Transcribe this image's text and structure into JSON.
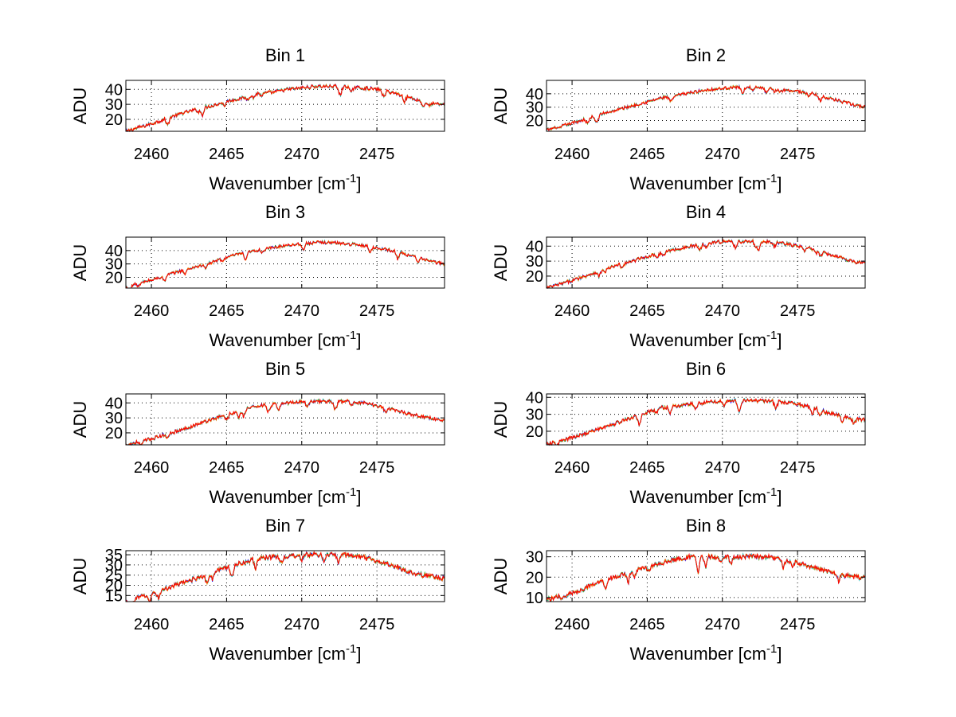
{
  "figure": {
    "background": "#ffffff",
    "series_colors": [
      "#0000ff",
      "#00a000",
      "#00bfbf",
      "#ff8000",
      "#ff0000"
    ]
  },
  "chart_data": [
    {
      "type": "line",
      "title": "Bin 1",
      "xlabel": "Wavenumber [cm",
      "xlabel_sup": "-1",
      "xlabel_end": "]",
      "ylabel": "ADU",
      "xlim": [
        2458.3,
        2479.5
      ],
      "ylim": [
        12,
        46
      ],
      "xticks": [
        2460,
        2465,
        2470,
        2475
      ],
      "yticks": [
        20,
        30,
        40
      ],
      "profile": {
        "x": [
          2458.3,
          2460,
          2462,
          2464,
          2465,
          2466,
          2467,
          2468,
          2469,
          2470,
          2471,
          2472,
          2473,
          2474,
          2475,
          2476,
          2477,
          2478,
          2479,
          2479.5
        ],
        "y": [
          12,
          17,
          24,
          29,
          32,
          34,
          37,
          38,
          40,
          41,
          42,
          42,
          42,
          41,
          40,
          38,
          35,
          32,
          30,
          30
        ]
      }
    },
    {
      "type": "line",
      "title": "Bin 2",
      "xlabel": "Wavenumber [cm",
      "xlabel_sup": "-1",
      "xlabel_end": "]",
      "ylabel": "ADU",
      "xlim": [
        2458.3,
        2479.5
      ],
      "ylim": [
        12,
        50
      ],
      "xticks": [
        2460,
        2465,
        2470,
        2475
      ],
      "yticks": [
        20,
        30,
        40
      ],
      "profile": {
        "x": [
          2458.3,
          2460,
          2462,
          2464,
          2465,
          2466,
          2467,
          2468,
          2469,
          2470,
          2471,
          2472,
          2473,
          2474,
          2475,
          2476,
          2477,
          2478,
          2479,
          2479.5
        ],
        "y": [
          13,
          18,
          25,
          31,
          34,
          37,
          39,
          41,
          43,
          44,
          45,
          45,
          44,
          43,
          42,
          40,
          37,
          34,
          31,
          30
        ]
      }
    },
    {
      "type": "line",
      "title": "Bin 3",
      "xlabel": "Wavenumber [cm",
      "xlabel_sup": "-1",
      "xlabel_end": "]",
      "ylabel": "ADU",
      "xlim": [
        2458.3,
        2479.5
      ],
      "ylim": [
        12,
        50
      ],
      "xticks": [
        2460,
        2465,
        2470,
        2475
      ],
      "yticks": [
        20,
        30,
        40
      ],
      "profile": {
        "x": [
          2458.3,
          2460,
          2462,
          2464,
          2465,
          2466,
          2467,
          2468,
          2469,
          2470,
          2471,
          2472,
          2473,
          2474,
          2475,
          2476,
          2477,
          2478,
          2479,
          2479.5
        ],
        "y": [
          13,
          18,
          25,
          31,
          35,
          38,
          40,
          42,
          44,
          45,
          46,
          46,
          45,
          44,
          42,
          40,
          37,
          34,
          31,
          30
        ]
      }
    },
    {
      "type": "line",
      "title": "Bin 4",
      "xlabel": "Wavenumber [cm",
      "xlabel_sup": "-1",
      "xlabel_end": "]",
      "ylabel": "ADU",
      "xlim": [
        2458.3,
        2479.5
      ],
      "ylim": [
        12,
        46
      ],
      "xticks": [
        2460,
        2465,
        2470,
        2475
      ],
      "yticks": [
        20,
        30,
        40
      ],
      "profile": {
        "x": [
          2458.3,
          2460,
          2462,
          2464,
          2465,
          2466,
          2467,
          2468,
          2469,
          2470,
          2471,
          2472,
          2473,
          2474,
          2475,
          2476,
          2477,
          2478,
          2479,
          2479.5
        ],
        "y": [
          12,
          17,
          24,
          30,
          33,
          36,
          38,
          40,
          42,
          43,
          43,
          43,
          43,
          42,
          40,
          38,
          35,
          32,
          29,
          29
        ]
      }
    },
    {
      "type": "line",
      "title": "Bin 5",
      "xlabel": "Wavenumber [cm",
      "xlabel_sup": "-1",
      "xlabel_end": "]",
      "ylabel": "ADU",
      "xlim": [
        2458.3,
        2479.5
      ],
      "ylim": [
        12,
        46
      ],
      "xticks": [
        2460,
        2465,
        2470,
        2475
      ],
      "yticks": [
        20,
        30,
        40
      ],
      "profile": {
        "x": [
          2458.3,
          2460,
          2462,
          2464,
          2465,
          2466,
          2467,
          2468,
          2469,
          2470,
          2471,
          2472,
          2473,
          2474,
          2475,
          2476,
          2477,
          2478,
          2479,
          2479.5
        ],
        "y": [
          12,
          16,
          22,
          29,
          32,
          35,
          38,
          39,
          40,
          41,
          41,
          41,
          41,
          40,
          38,
          36,
          33,
          31,
          29,
          28
        ]
      }
    },
    {
      "type": "line",
      "title": "Bin 6",
      "xlabel": "Wavenumber [cm",
      "xlabel_sup": "-1",
      "xlabel_end": "]",
      "ylabel": "ADU",
      "xlim": [
        2458.3,
        2479.5
      ],
      "ylim": [
        12,
        42
      ],
      "xticks": [
        2460,
        2465,
        2470,
        2475
      ],
      "yticks": [
        20,
        30,
        40
      ],
      "profile": {
        "x": [
          2458.3,
          2460,
          2462,
          2464,
          2465,
          2466,
          2467,
          2468,
          2469,
          2470,
          2471,
          2472,
          2473,
          2474,
          2475,
          2476,
          2477,
          2478,
          2479,
          2479.5
        ],
        "y": [
          12,
          16,
          22,
          28,
          31,
          34,
          35,
          36,
          37,
          38,
          38,
          38,
          38,
          37,
          36,
          34,
          31,
          29,
          27,
          27
        ]
      }
    },
    {
      "type": "line",
      "title": "Bin 7",
      "xlabel": "Wavenumber [cm",
      "xlabel_sup": "-1",
      "xlabel_end": "]",
      "ylabel": "ADU",
      "xlim": [
        2458.3,
        2479.5
      ],
      "ylim": [
        12,
        37
      ],
      "xticks": [
        2460,
        2465,
        2470,
        2475
      ],
      "yticks": [
        15,
        20,
        25,
        30,
        35
      ],
      "profile": {
        "x": [
          2458.3,
          2460,
          2462,
          2464,
          2465,
          2466,
          2467,
          2468,
          2469,
          2470,
          2471,
          2472,
          2473,
          2474,
          2475,
          2476,
          2477,
          2478,
          2479,
          2479.5
        ],
        "y": [
          12,
          16,
          21,
          26,
          29,
          31,
          33,
          34,
          34,
          35,
          35,
          35,
          35,
          34,
          32,
          30,
          27,
          25,
          24,
          24
        ]
      }
    },
    {
      "type": "line",
      "title": "Bin 8",
      "xlabel": "Wavenumber [cm",
      "xlabel_sup": "-1",
      "xlabel_end": "]",
      "ylabel": "ADU",
      "xlim": [
        2458.3,
        2479.5
      ],
      "ylim": [
        8,
        33
      ],
      "xticks": [
        2460,
        2465,
        2470,
        2475
      ],
      "yticks": [
        10,
        20,
        30
      ],
      "profile": {
        "x": [
          2458.3,
          2460,
          2462,
          2464,
          2465,
          2466,
          2467,
          2468,
          2469,
          2470,
          2471,
          2472,
          2473,
          2474,
          2475,
          2476,
          2477,
          2478,
          2479,
          2479.5
        ],
        "y": [
          9,
          12,
          18,
          23,
          25,
          27,
          29,
          30,
          30,
          30,
          30,
          30,
          30,
          29,
          27,
          25,
          23,
          21,
          20,
          20
        ]
      }
    }
  ]
}
